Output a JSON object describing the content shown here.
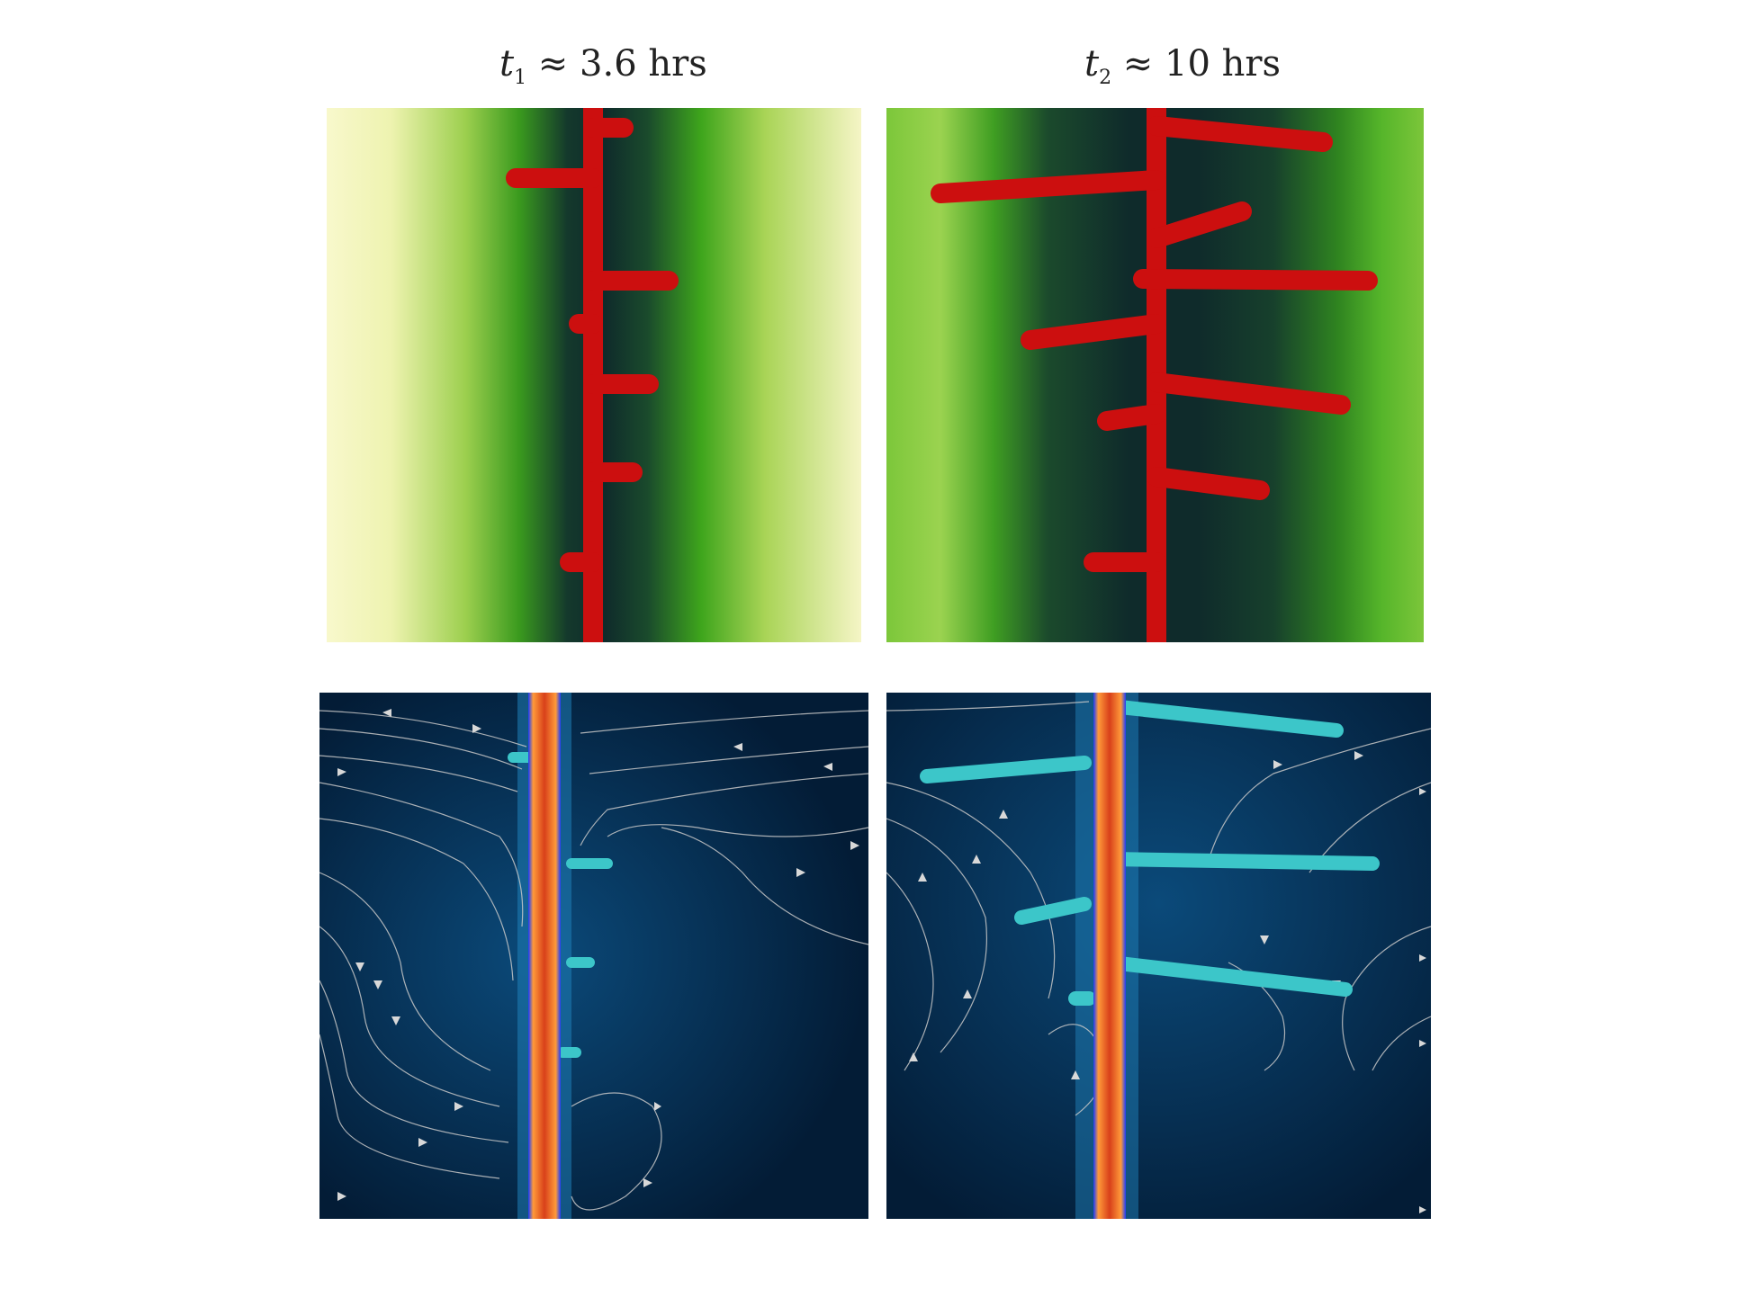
{
  "figure": {
    "panels": [
      {
        "label_var": "t",
        "label_sub": "1",
        "label_rest": " ≈ 3.6 hrs"
      },
      {
        "label_var": "t",
        "label_sub": "2",
        "label_rest": " ≈ 10 hrs"
      }
    ]
  },
  "colors": {
    "vessel_red": "#cc0f0f",
    "nutrient_high": "#f6f6c4",
    "nutrient_mid": "#3ea51c",
    "nutrient_low": "#0e2a2a",
    "flow_bg": "#04284a",
    "flow_vessel": "#e2541c",
    "sprout_cyan": "#3cc6c9",
    "streamline": "#d0d0d0"
  }
}
